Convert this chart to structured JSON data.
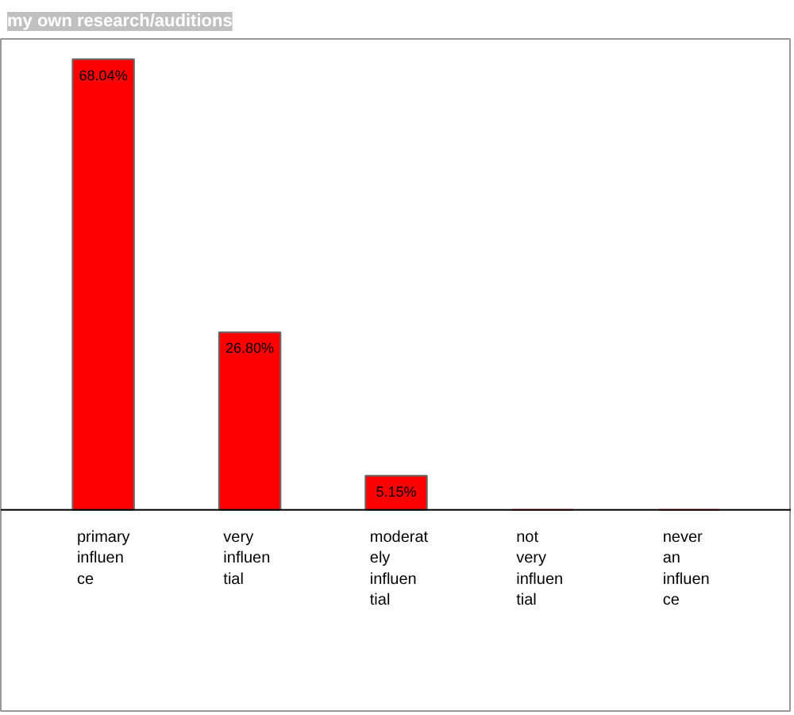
{
  "chart_data": {
    "type": "bar",
    "title": "my own research/auditions",
    "categories": [
      "primary influence",
      "very influential",
      "moderately influential",
      "not very influential",
      "never an influence"
    ],
    "values": [
      68.04,
      26.8,
      5.15,
      0,
      0
    ],
    "value_labels": [
      "68.04%",
      "26.80%",
      "5.15%",
      null,
      null
    ],
    "color": "#ff0000",
    "grid": false
  }
}
